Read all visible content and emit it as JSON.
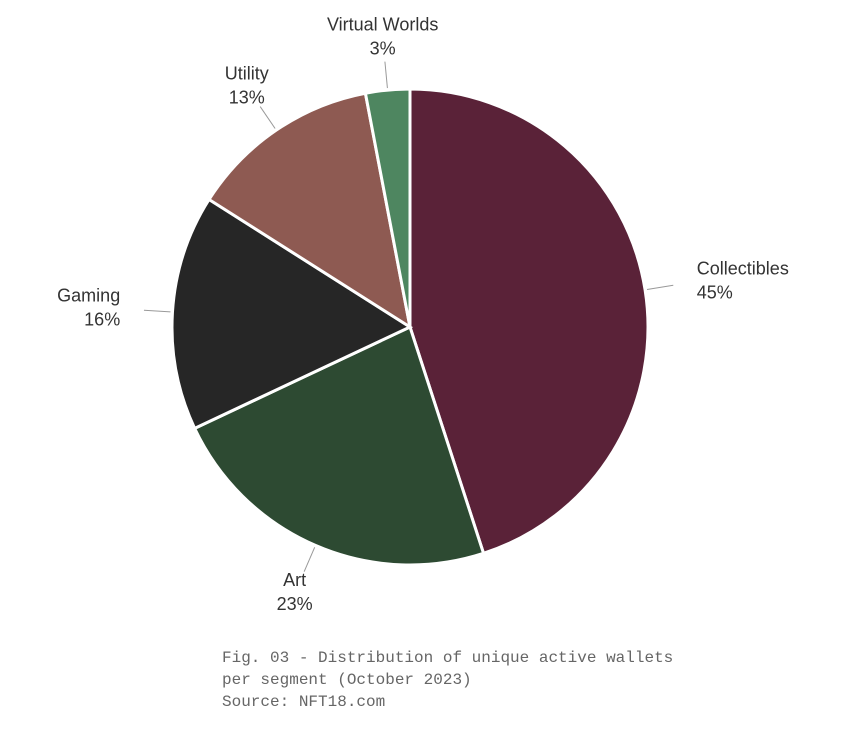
{
  "chart_data": {
    "type": "pie",
    "categories": [
      "Collectibles",
      "Art",
      "Gaming",
      "Utility",
      "Virtual Worlds"
    ],
    "values": [
      45,
      23,
      16,
      13,
      3
    ],
    "value_labels": [
      "45%",
      "23%",
      "16%",
      "13%",
      "3%"
    ],
    "colors": [
      "#5a2238",
      "#2d4a32",
      "#262626",
      "#8e5a52",
      "#4e8660"
    ],
    "caption": [
      "Fig. 03 - Distribution of unique active wallets",
      "per segment (October 2023)",
      "Source: NFT18.com"
    ]
  }
}
